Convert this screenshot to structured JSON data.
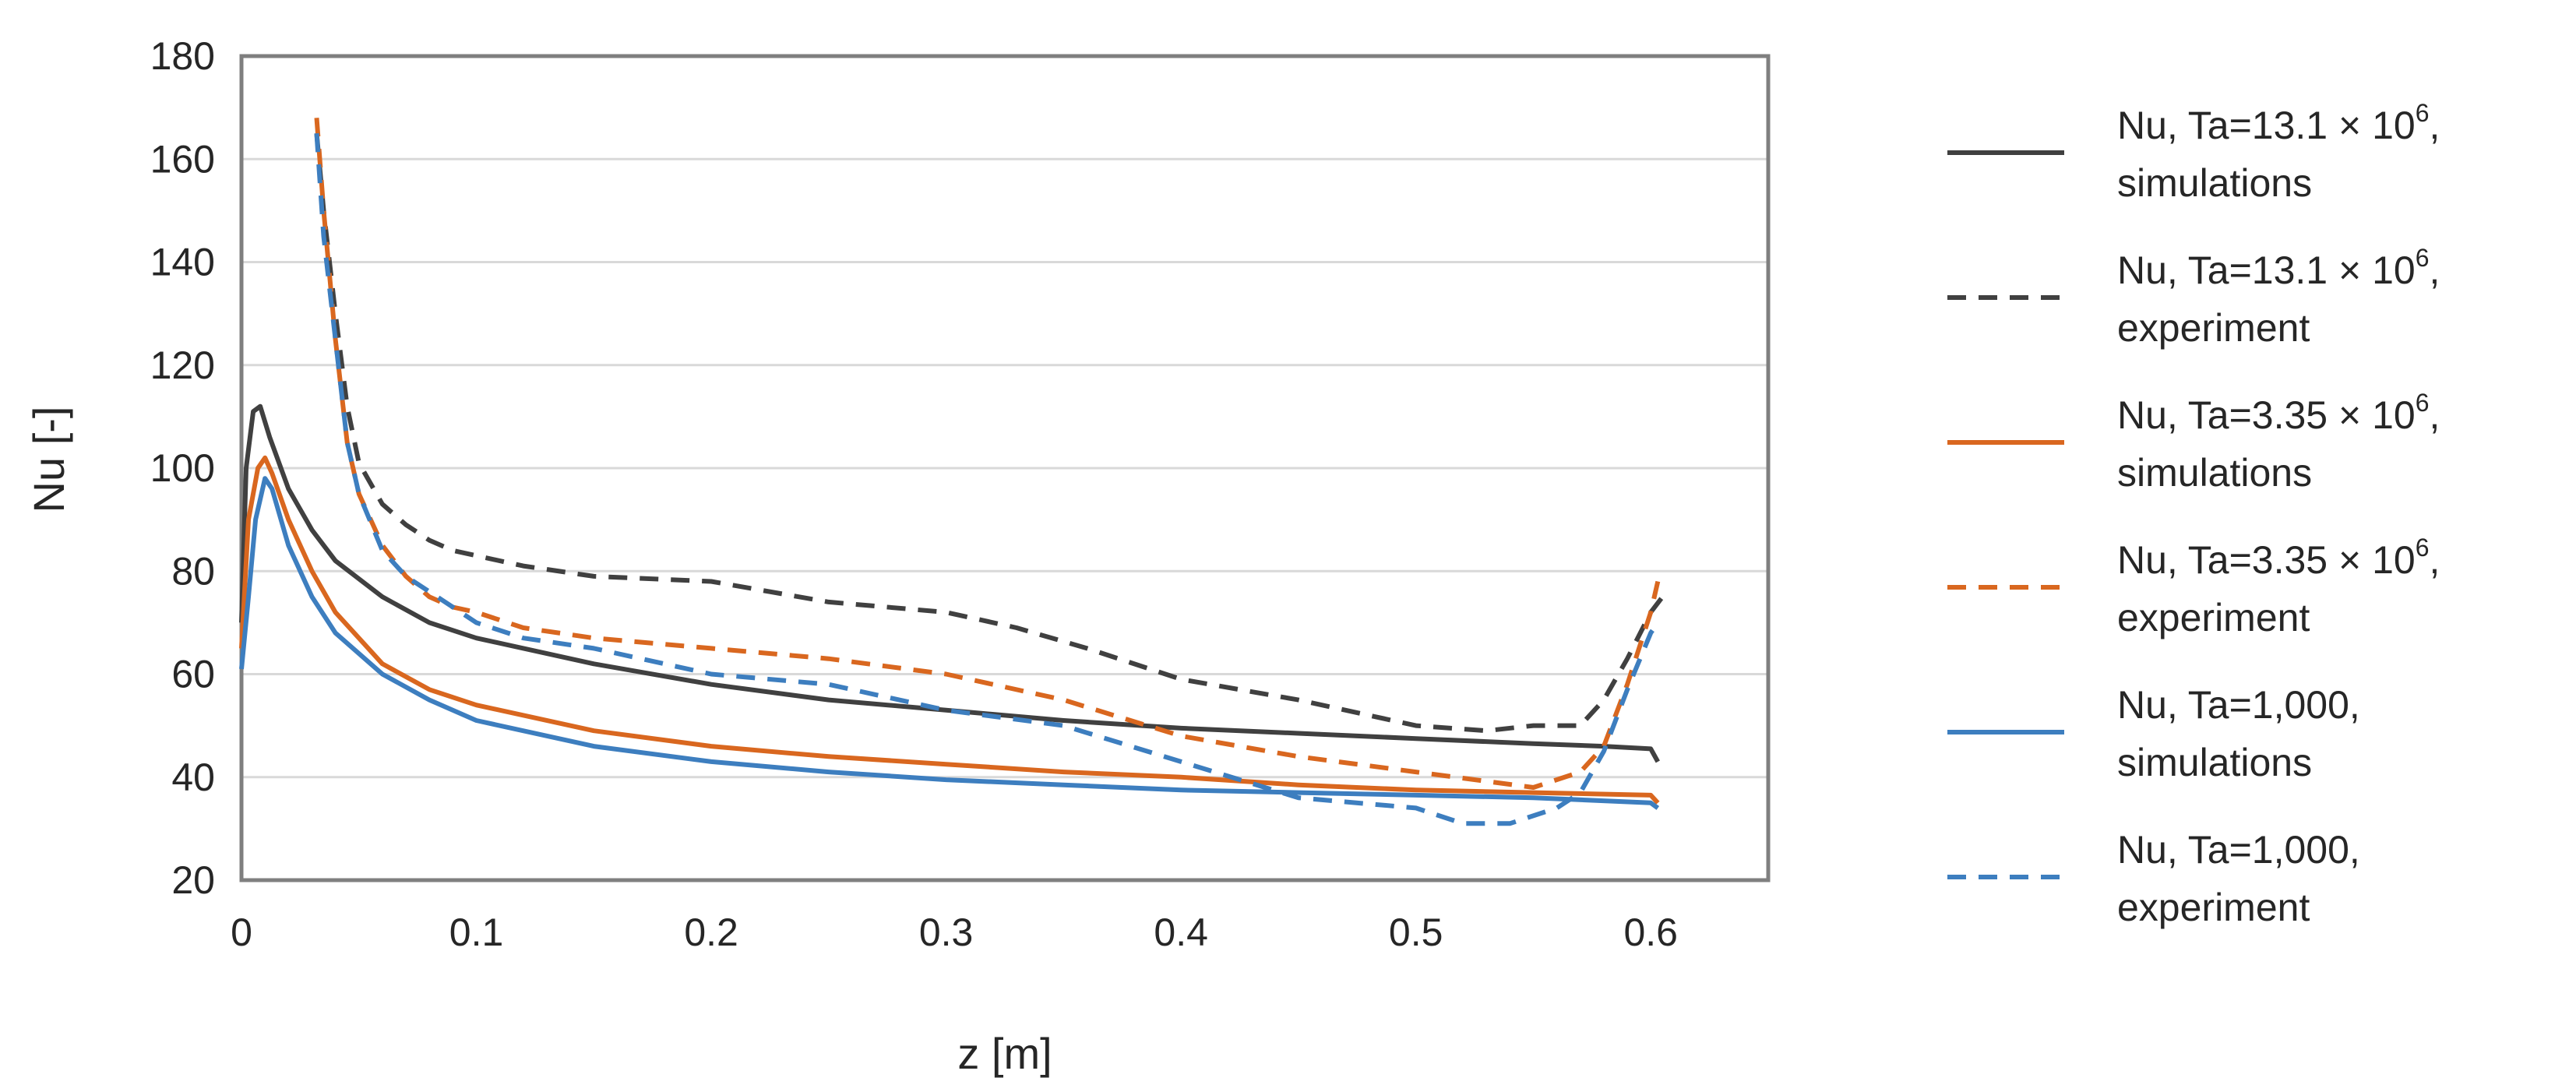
{
  "chart_data": {
    "type": "line",
    "title": "",
    "xlabel": "z [m]",
    "ylabel": "Nu [-]",
    "xlim": [
      0,
      0.65
    ],
    "ylim": [
      20,
      180
    ],
    "xticks": [
      0,
      0.1,
      0.2,
      0.3,
      0.4,
      0.5,
      0.6
    ],
    "xtick_labels": [
      "0",
      "0.1",
      "0.2",
      "0.3",
      "0.4",
      "0.5",
      "0.6"
    ],
    "yticks": [
      20,
      40,
      60,
      80,
      100,
      120,
      140,
      160,
      180
    ],
    "ytick_labels": [
      "20",
      "40",
      "60",
      "80",
      "100",
      "120",
      "140",
      "160",
      "180"
    ],
    "grid": "horizontal",
    "legend_position": "right",
    "series": [
      {
        "name": "Nu, Ta=13.1 × 10^6, simulations",
        "legend_line1": "Nu, Ta=13.1 × 10",
        "legend_sup": "6",
        "legend_line1_end": ",",
        "legend_line2": "simulations",
        "color": "#404040",
        "dash": "solid",
        "x": [
          0,
          0.002,
          0.005,
          0.008,
          0.012,
          0.02,
          0.03,
          0.04,
          0.06,
          0.08,
          0.1,
          0.15,
          0.2,
          0.25,
          0.3,
          0.35,
          0.4,
          0.45,
          0.5,
          0.55,
          0.58,
          0.6,
          0.603
        ],
        "y": [
          70,
          100,
          111,
          112,
          106,
          96,
          88,
          82,
          75,
          70,
          67,
          62,
          58,
          55,
          53,
          51,
          49.5,
          48.5,
          47.5,
          46.5,
          46,
          45.5,
          43
        ]
      },
      {
        "name": "Nu, Ta=13.1 × 10^6, experiment",
        "legend_line1": "Nu, Ta=13.1 × 10",
        "legend_sup": "6",
        "legend_line1_end": ",",
        "legend_line2": "experiment",
        "color": "#404040",
        "dash": "dashed",
        "x": [
          0.032,
          0.035,
          0.04,
          0.045,
          0.05,
          0.06,
          0.07,
          0.08,
          0.09,
          0.1,
          0.12,
          0.15,
          0.2,
          0.25,
          0.3,
          0.33,
          0.36,
          0.4,
          0.45,
          0.5,
          0.53,
          0.55,
          0.57,
          0.58,
          0.59,
          0.6,
          0.605
        ],
        "y": [
          165,
          150,
          130,
          112,
          101,
          93,
          89,
          86,
          84,
          83,
          81,
          79,
          78,
          74,
          72,
          69,
          65,
          59,
          55,
          50,
          49,
          50,
          50,
          55,
          63,
          72,
          75
        ]
      },
      {
        "name": "Nu, Ta=3.35 × 10^6, simulations",
        "legend_line1": "Nu, Ta=3.35 × 10",
        "legend_sup": "6",
        "legend_line1_end": ",",
        "legend_line2": "simulations",
        "color": "#d9671f",
        "dash": "solid",
        "x": [
          0,
          0.003,
          0.007,
          0.01,
          0.013,
          0.02,
          0.03,
          0.04,
          0.06,
          0.08,
          0.1,
          0.15,
          0.2,
          0.25,
          0.3,
          0.35,
          0.4,
          0.45,
          0.5,
          0.55,
          0.6,
          0.603
        ],
        "y": [
          65,
          90,
          100,
          102,
          99,
          90,
          80,
          72,
          62,
          57,
          54,
          49,
          46,
          44,
          42.5,
          41,
          40,
          38.5,
          37.5,
          37,
          36.5,
          35
        ]
      },
      {
        "name": "Nu, Ta=3.35 × 10^6, experiment",
        "legend_line1": "Nu, Ta=3.35 × 10",
        "legend_sup": "6",
        "legend_line1_end": ",",
        "legend_line2": "experiment",
        "color": "#d9671f",
        "dash": "dashed",
        "x": [
          0.032,
          0.035,
          0.04,
          0.045,
          0.05,
          0.06,
          0.07,
          0.08,
          0.09,
          0.1,
          0.12,
          0.15,
          0.2,
          0.25,
          0.3,
          0.35,
          0.4,
          0.45,
          0.5,
          0.55,
          0.57,
          0.58,
          0.59,
          0.6,
          0.603
        ],
        "y": [
          168,
          150,
          125,
          105,
          95,
          85,
          79,
          75,
          73,
          72,
          69,
          67,
          65,
          63,
          60,
          55,
          48,
          44,
          41,
          38,
          41,
          46,
          58,
          72,
          78
        ]
      },
      {
        "name": "Nu, Ta=1,000, simulations",
        "legend_line1": "Nu, Ta=1,000,",
        "legend_sup": "",
        "legend_line1_end": "",
        "legend_line2": "simulations",
        "color": "#3d7ebf",
        "dash": "solid",
        "x": [
          0,
          0.003,
          0.006,
          0.01,
          0.013,
          0.02,
          0.03,
          0.04,
          0.06,
          0.08,
          0.1,
          0.15,
          0.2,
          0.25,
          0.3,
          0.35,
          0.4,
          0.45,
          0.5,
          0.55,
          0.6,
          0.603
        ],
        "y": [
          61,
          75,
          90,
          98,
          96,
          85,
          75,
          68,
          60,
          55,
          51,
          46,
          43,
          41,
          39.5,
          38.5,
          37.5,
          37,
          36.5,
          36,
          35,
          34
        ]
      },
      {
        "name": "Nu, Ta=1,000, experiment",
        "legend_line1": "Nu, Ta=1,000,",
        "legend_sup": "",
        "legend_line1_end": "",
        "legend_line2": "experiment",
        "color": "#3d7ebf",
        "dash": "dashed",
        "x": [
          0.032,
          0.035,
          0.04,
          0.045,
          0.05,
          0.06,
          0.07,
          0.08,
          0.09,
          0.1,
          0.12,
          0.15,
          0.2,
          0.25,
          0.3,
          0.35,
          0.4,
          0.45,
          0.5,
          0.52,
          0.54,
          0.56,
          0.57,
          0.58,
          0.59,
          0.6,
          0.603
        ],
        "y": [
          165,
          145,
          125,
          105,
          95,
          84,
          79,
          76,
          73,
          70,
          67,
          65,
          60,
          58,
          53,
          50,
          43,
          36,
          34,
          31,
          31,
          34,
          37,
          45,
          57,
          68,
          70
        ]
      }
    ]
  }
}
